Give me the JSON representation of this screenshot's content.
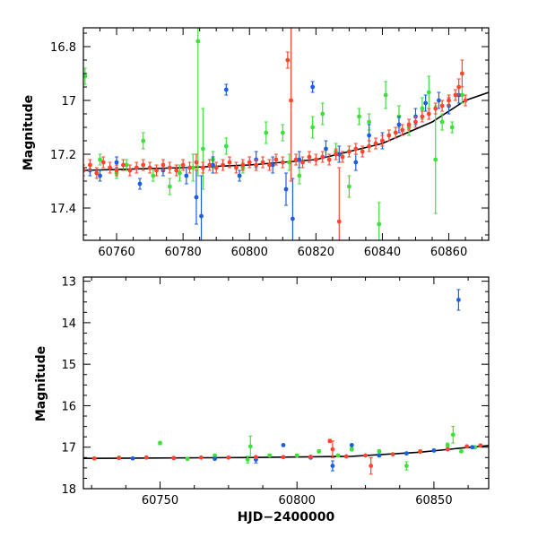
{
  "chart_data": [
    {
      "type": "scatter",
      "title": "",
      "xlabel": "",
      "ylabel": "Magnitude",
      "xlim": [
        60750,
        60872
      ],
      "ylim": [
        17.52,
        16.73
      ],
      "y_inverted": true,
      "grid": false,
      "x_ticks": [
        60760,
        60780,
        60800,
        60820,
        60840,
        60860
      ],
      "y_ticks": [
        16.8,
        17,
        17.2,
        17.4
      ],
      "series": [
        {
          "color": "#3fe03a",
          "marker": "dot-errorbar",
          "points": [
            [
              60750.5,
              16.91,
              0.03
            ],
            [
              60755,
              17.22,
              0.02
            ],
            [
              60760,
              17.27,
              0.02
            ],
            [
              60763,
              17.24,
              0.02
            ],
            [
              60768,
              17.15,
              0.03
            ],
            [
              60771,
              17.28,
              0.02
            ],
            [
              60776,
              17.32,
              0.03
            ],
            [
              60779,
              17.27,
              0.03
            ],
            [
              60783,
              17.25,
              0.05
            ],
            [
              60784.5,
              16.78,
              0.5
            ],
            [
              60786,
              17.18,
              0.15
            ],
            [
              60789,
              17.22,
              0.03
            ],
            [
              60793,
              17.17,
              0.03
            ],
            [
              60798,
              17.25,
              0.02
            ],
            [
              60805,
              17.12,
              0.04
            ],
            [
              60810,
              17.12,
              0.03
            ],
            [
              60812,
              17.23,
              0.03
            ],
            [
              60815,
              17.28,
              0.03
            ],
            [
              60819,
              17.1,
              0.04
            ],
            [
              60822,
              17.05,
              0.04
            ],
            [
              60826,
              17.19,
              0.03
            ],
            [
              60830,
              17.32,
              0.04
            ],
            [
              60833,
              17.06,
              0.03
            ],
            [
              60836,
              17.08,
              0.03
            ],
            [
              60839,
              17.46,
              0.08
            ],
            [
              60841,
              16.98,
              0.05
            ],
            [
              60845,
              17.06,
              0.04
            ],
            [
              60848,
              17.1,
              0.03
            ],
            [
              60852,
              17.03,
              0.04
            ],
            [
              60854,
              16.97,
              0.06
            ],
            [
              60856,
              17.22,
              0.2
            ],
            [
              60858,
              17.08,
              0.03
            ],
            [
              60861,
              17.1,
              0.02
            ],
            [
              60864,
              16.98,
              0.03
            ]
          ]
        },
        {
          "color": "#1b5fe0",
          "marker": "dot-errorbar",
          "points": [
            [
              60752,
              17.26,
              0.02
            ],
            [
              60755,
              17.28,
              0.02
            ],
            [
              60760,
              17.23,
              0.02
            ],
            [
              60767,
              17.31,
              0.02
            ],
            [
              60774,
              17.26,
              0.02
            ],
            [
              60781,
              17.28,
              0.03
            ],
            [
              60784,
              17.36,
              0.1
            ],
            [
              60785.5,
              17.43,
              0.15
            ],
            [
              60789,
              17.24,
              0.03
            ],
            [
              60793,
              16.96,
              0.02
            ],
            [
              60797,
              17.28,
              0.02
            ],
            [
              60802,
              17.22,
              0.03
            ],
            [
              60807,
              17.24,
              0.03
            ],
            [
              60811,
              17.33,
              0.06
            ],
            [
              60813,
              17.44,
              0.15
            ],
            [
              60815,
              17.22,
              0.03
            ],
            [
              60819,
              16.95,
              0.02
            ],
            [
              60823,
              17.18,
              0.03
            ],
            [
              60827,
              17.2,
              0.03
            ],
            [
              60832,
              17.23,
              0.03
            ],
            [
              60836,
              17.13,
              0.04
            ],
            [
              60840,
              17.15,
              0.03
            ],
            [
              60845,
              17.09,
              0.03
            ],
            [
              60850,
              17.06,
              0.03
            ],
            [
              60853,
              17.01,
              0.03
            ],
            [
              60857,
              17.0,
              0.03
            ],
            [
              60860,
              17.02,
              0.03
            ],
            [
              60863,
              16.98,
              0.03
            ]
          ]
        },
        {
          "color": "#ff4530",
          "marker": "dot-errorbar",
          "points": [
            [
              60750,
              17.26,
              0.02
            ],
            [
              60752,
              17.24,
              0.02
            ],
            [
              60754,
              17.27,
              0.02
            ],
            [
              60756,
              17.23,
              0.02
            ],
            [
              60758,
              17.25,
              0.02
            ],
            [
              60760,
              17.26,
              0.02
            ],
            [
              60762,
              17.24,
              0.02
            ],
            [
              60764,
              17.26,
              0.02
            ],
            [
              60766,
              17.25,
              0.02
            ],
            [
              60768,
              17.24,
              0.02
            ],
            [
              60770,
              17.25,
              0.02
            ],
            [
              60772,
              17.26,
              0.02
            ],
            [
              60774,
              17.24,
              0.02
            ],
            [
              60776,
              17.25,
              0.02
            ],
            [
              60778,
              17.26,
              0.02
            ],
            [
              60780,
              17.24,
              0.02
            ],
            [
              60782,
              17.25,
              0.02
            ],
            [
              60784,
              17.23,
              0.03
            ],
            [
              60786,
              17.25,
              0.02
            ],
            [
              60788,
              17.24,
              0.02
            ],
            [
              60790,
              17.25,
              0.02
            ],
            [
              60792,
              17.24,
              0.02
            ],
            [
              60794,
              17.23,
              0.02
            ],
            [
              60796,
              17.25,
              0.02
            ],
            [
              60798,
              17.24,
              0.02
            ],
            [
              60800,
              17.23,
              0.02
            ],
            [
              60802,
              17.24,
              0.02
            ],
            [
              60804,
              17.23,
              0.02
            ],
            [
              60806,
              17.24,
              0.02
            ],
            [
              60808,
              17.22,
              0.02
            ],
            [
              60810,
              17.23,
              0.02
            ],
            [
              60811.5,
              16.85,
              0.03
            ],
            [
              60812.5,
              17.0,
              0.3
            ],
            [
              60814,
              17.22,
              0.02
            ],
            [
              60816,
              17.23,
              0.02
            ],
            [
              60818,
              17.21,
              0.02
            ],
            [
              60820,
              17.22,
              0.02
            ],
            [
              60822,
              17.21,
              0.02
            ],
            [
              60824,
              17.22,
              0.02
            ],
            [
              60826,
              17.2,
              0.02
            ],
            [
              60827,
              17.45,
              0.2
            ],
            [
              60828,
              17.21,
              0.02
            ],
            [
              60830,
              17.19,
              0.02
            ],
            [
              60832,
              17.18,
              0.02
            ],
            [
              60834,
              17.19,
              0.02
            ],
            [
              60836,
              17.17,
              0.02
            ],
            [
              60838,
              17.16,
              0.02
            ],
            [
              60840,
              17.15,
              0.02
            ],
            [
              60842,
              17.13,
              0.02
            ],
            [
              60844,
              17.12,
              0.02
            ],
            [
              60846,
              17.11,
              0.02
            ],
            [
              60848,
              17.09,
              0.02
            ],
            [
              60850,
              17.08,
              0.02
            ],
            [
              60852,
              17.06,
              0.02
            ],
            [
              60854,
              17.05,
              0.02
            ],
            [
              60856,
              17.03,
              0.02
            ],
            [
              60858,
              17.02,
              0.02
            ],
            [
              60860,
              17.0,
              0.02
            ],
            [
              60862,
              16.98,
              0.02
            ],
            [
              60863,
              16.95,
              0.03
            ],
            [
              60864,
              16.9,
              0.05
            ],
            [
              60865,
              17.0,
              0.02
            ]
          ]
        }
      ],
      "fit_curve": {
        "color": "#000000",
        "points": [
          [
            60750,
            17.26
          ],
          [
            60780,
            17.25
          ],
          [
            60800,
            17.24
          ],
          [
            60820,
            17.22
          ],
          [
            60840,
            17.16
          ],
          [
            60855,
            17.08
          ],
          [
            60865,
            17.0
          ],
          [
            60872,
            16.97
          ]
        ]
      }
    },
    {
      "type": "scatter",
      "title": "",
      "xlabel": "HJD−2400000",
      "ylabel": "Magnitude",
      "xlim": [
        60722,
        60870
      ],
      "ylim": [
        18,
        12.9
      ],
      "y_inverted": true,
      "grid": false,
      "x_ticks": [
        60750,
        60800,
        60850
      ],
      "y_ticks": [
        13,
        14,
        15,
        16,
        17,
        18
      ],
      "series": [
        {
          "color": "#3fe03a",
          "marker": "dot-errorbar",
          "points": [
            [
              60735,
              17.25,
              0.02
            ],
            [
              60750,
              16.9,
              0.04
            ],
            [
              60760,
              17.28,
              0.03
            ],
            [
              60770,
              17.2,
              0.03
            ],
            [
              60782,
              17.3,
              0.08
            ],
            [
              60783,
              16.98,
              0.25
            ],
            [
              60790,
              17.2,
              0.03
            ],
            [
              60800,
              17.2,
              0.03
            ],
            [
              60808,
              17.1,
              0.04
            ],
            [
              60815,
              17.2,
              0.03
            ],
            [
              60820,
              17.05,
              0.04
            ],
            [
              60830,
              17.1,
              0.04
            ],
            [
              60840,
              17.45,
              0.1
            ],
            [
              60845,
              17.1,
              0.04
            ],
            [
              60855,
              16.95,
              0.05
            ],
            [
              60857,
              16.7,
              0.2
            ],
            [
              60860,
              17.1,
              0.03
            ],
            [
              60865,
              17.0,
              0.03
            ]
          ]
        },
        {
          "color": "#1b5fe0",
          "marker": "dot-errorbar",
          "points": [
            [
              60740,
              17.27,
              0.02
            ],
            [
              60755,
              17.26,
              0.02
            ],
            [
              60770,
              17.28,
              0.02
            ],
            [
              60785,
              17.3,
              0.08
            ],
            [
              60795,
              16.95,
              0.02
            ],
            [
              60805,
              17.25,
              0.03
            ],
            [
              60813,
              17.45,
              0.12
            ],
            [
              60820,
              16.95,
              0.02
            ],
            [
              60830,
              17.2,
              0.03
            ],
            [
              60840,
              17.15,
              0.03
            ],
            [
              60850,
              17.08,
              0.03
            ],
            [
              60859,
              13.45,
              0.25
            ],
            [
              60864,
              17.0,
              0.03
            ]
          ]
        },
        {
          "color": "#ff4530",
          "marker": "dot-errorbar",
          "points": [
            [
              60726,
              17.27,
              0.02
            ],
            [
              60735,
              17.26,
              0.02
            ],
            [
              60745,
              17.25,
              0.02
            ],
            [
              60755,
              17.26,
              0.02
            ],
            [
              60765,
              17.25,
              0.02
            ],
            [
              60775,
              17.25,
              0.02
            ],
            [
              60785,
              17.24,
              0.02
            ],
            [
              60795,
              17.24,
              0.02
            ],
            [
              60805,
              17.23,
              0.02
            ],
            [
              60812,
              16.85,
              0.04
            ],
            [
              60813,
              17.05,
              0.2
            ],
            [
              60818,
              17.22,
              0.02
            ],
            [
              60825,
              17.2,
              0.02
            ],
            [
              60827,
              17.45,
              0.2
            ],
            [
              60835,
              17.17,
              0.02
            ],
            [
              60845,
              17.11,
              0.02
            ],
            [
              60855,
              17.05,
              0.02
            ],
            [
              60862,
              16.98,
              0.02
            ],
            [
              60867,
              16.96,
              0.03
            ]
          ]
        }
      ],
      "fit_curve": {
        "color": "#000000",
        "points": [
          [
            60722,
            17.27
          ],
          [
            60780,
            17.25
          ],
          [
            60820,
            17.22
          ],
          [
            60845,
            17.12
          ],
          [
            60860,
            17.02
          ],
          [
            60870,
            16.96
          ]
        ]
      }
    }
  ]
}
